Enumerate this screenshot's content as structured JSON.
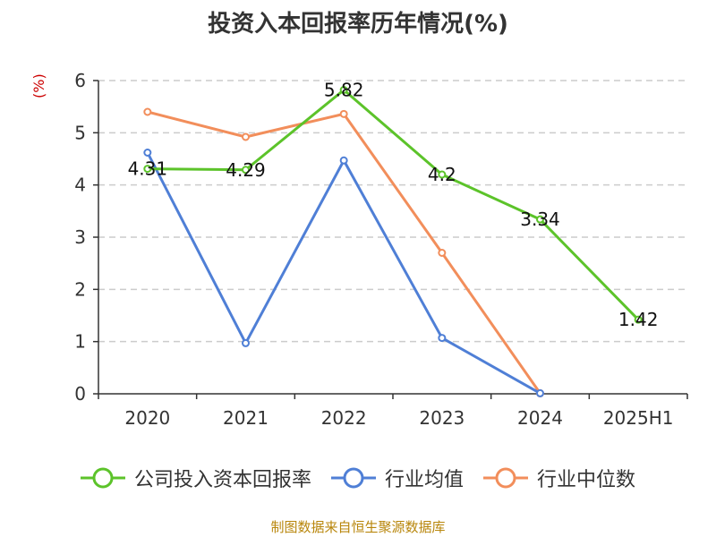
{
  "chart_data": {
    "type": "line",
    "title": "投资入本回报率历年情况(%)",
    "ylabel": "(%)",
    "categories": [
      "2020",
      "2021",
      "2022",
      "2023",
      "2024",
      "2025H1"
    ],
    "ylim": [
      0,
      6
    ],
    "yticks": [
      0,
      1,
      2,
      3,
      4,
      5,
      6
    ],
    "grid": true,
    "legend_position": "bottom",
    "series": [
      {
        "name": "公司投入资本回报率",
        "color": "#5cc32a",
        "values": [
          4.31,
          4.29,
          5.82,
          4.2,
          3.34,
          1.42
        ],
        "labels": [
          "4.31",
          "4.29",
          "5.82",
          "4.2",
          "3.34",
          "1.42"
        ]
      },
      {
        "name": "行业均值",
        "color": "#4f7fd6",
        "values": [
          4.62,
          0.97,
          4.47,
          1.07,
          0.01,
          null
        ]
      },
      {
        "name": "行业中位数",
        "color": "#f28e5b",
        "values": [
          5.4,
          4.92,
          5.36,
          2.7,
          0.01,
          null
        ]
      }
    ]
  },
  "footer": "制图数据来自恒生聚源数据库"
}
